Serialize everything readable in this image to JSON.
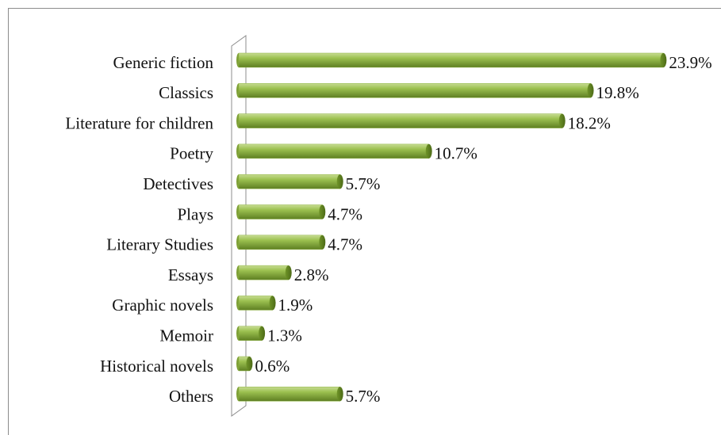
{
  "chart_data": {
    "type": "bar",
    "orientation": "horizontal",
    "color": "#8fb443",
    "categories": [
      "Generic fiction",
      "Classics",
      "Literature for children",
      "Poetry",
      "Detectives",
      "Plays",
      "Literary Studies",
      "Essays",
      "Graphic novels",
      "Memoir",
      "Historical novels",
      "Others"
    ],
    "values": [
      23.9,
      19.8,
      18.2,
      10.7,
      5.7,
      4.7,
      4.7,
      2.8,
      1.9,
      1.3,
      0.6,
      5.7
    ],
    "value_labels": [
      "23.9%",
      "19.8%",
      "18.2%",
      "10.7%",
      "5.7%",
      "4.7%",
      "4.7%",
      "2.8%",
      "1.9%",
      "1.3%",
      "0.6%",
      "5.7%"
    ]
  }
}
